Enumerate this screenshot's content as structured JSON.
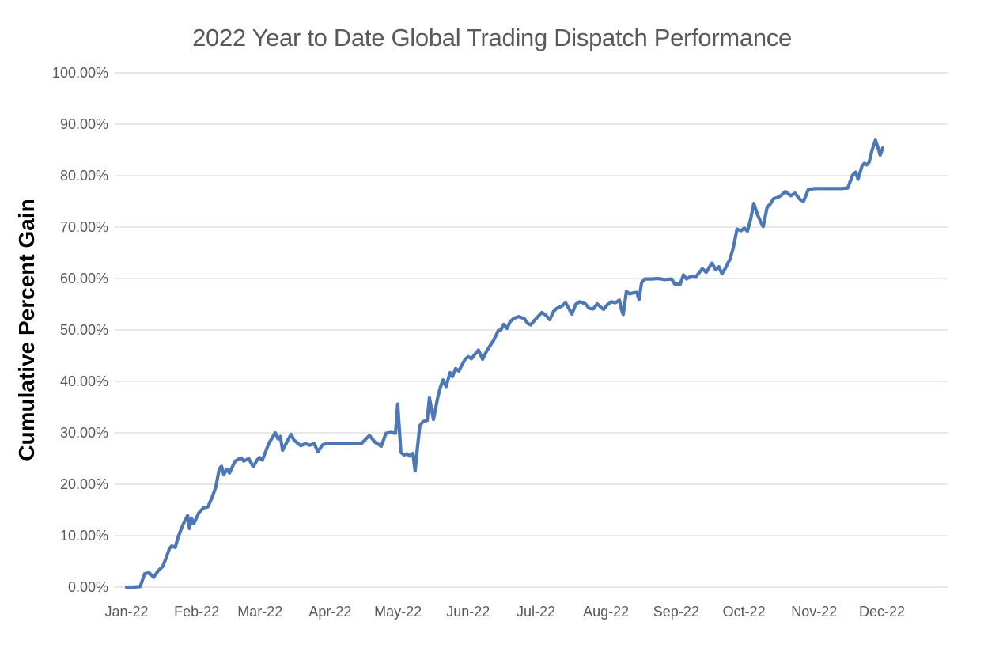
{
  "colors": {
    "line": "#4d78b5",
    "grid": "#d9d9d9",
    "tick_text": "#595959",
    "title_text": "#595959",
    "axis_title_text": "#000000",
    "background": "#ffffff"
  },
  "chart_data": {
    "type": "line",
    "title": "2022 Year to Date Global Trading Dispatch Performance",
    "xlabel": "",
    "ylabel": "Cumulative Percent Gain",
    "grid": true,
    "legend_position": "none",
    "ylim": [
      0,
      100
    ],
    "xlim_days": [
      0,
      363
    ],
    "y_tick_values": [
      0,
      10,
      20,
      30,
      40,
      50,
      60,
      70,
      80,
      90,
      100
    ],
    "y_tick_labels": [
      "0.00%",
      "10.00%",
      "20.00%",
      "30.00%",
      "40.00%",
      "50.00%",
      "60.00%",
      "70.00%",
      "80.00%",
      "90.00%",
      "100.00%"
    ],
    "x_tick_days": [
      0,
      31,
      59,
      90,
      120,
      151,
      181,
      212,
      243,
      273,
      304,
      334
    ],
    "x_tick_labels": [
      "Jan-22",
      "Feb-22",
      "Mar-22",
      "Apr-22",
      "May-22",
      "Jun-22",
      "Jul-22",
      "Aug-22",
      "Sep-22",
      "Oct-22",
      "Nov-22",
      "Dec-22"
    ],
    "series": [
      {
        "name": "Cumulative Percent Gain",
        "units": "percent",
        "points": [
          [
            0,
            0
          ],
          [
            3,
            0
          ],
          [
            6,
            0.1
          ],
          [
            8,
            2.6
          ],
          [
            10,
            2.8
          ],
          [
            12,
            1.9
          ],
          [
            14,
            3.2
          ],
          [
            16,
            4.0
          ],
          [
            17.5,
            5.7
          ],
          [
            19,
            7.5
          ],
          [
            20,
            8.0
          ],
          [
            21.5,
            7.7
          ],
          [
            23,
            10.0
          ],
          [
            25,
            12.2
          ],
          [
            27,
            13.9
          ],
          [
            27.8,
            11.4
          ],
          [
            28.7,
            13.4
          ],
          [
            29.7,
            12.3
          ],
          [
            32,
            14.5
          ],
          [
            34,
            15.4
          ],
          [
            36,
            15.6
          ],
          [
            38,
            17.7
          ],
          [
            39.5,
            19.5
          ],
          [
            41,
            23.0
          ],
          [
            42,
            23.5
          ],
          [
            43,
            21.9
          ],
          [
            44.4,
            22.9
          ],
          [
            45.5,
            22.2
          ],
          [
            48,
            24.5
          ],
          [
            49.7,
            24.9
          ],
          [
            50.7,
            25.1
          ],
          [
            51.8,
            24.5
          ],
          [
            54,
            25.0
          ],
          [
            56,
            23.4
          ],
          [
            57.7,
            24.7
          ],
          [
            58.8,
            25.2
          ],
          [
            60,
            24.7
          ],
          [
            63,
            28.0
          ],
          [
            65.7,
            30.0
          ],
          [
            67,
            28.8
          ],
          [
            68,
            29.3
          ],
          [
            69,
            26.6
          ],
          [
            71,
            28.3
          ],
          [
            72.7,
            29.7
          ],
          [
            74,
            28.6
          ],
          [
            77,
            27.5
          ],
          [
            79,
            27.9
          ],
          [
            81,
            27.6
          ],
          [
            83,
            27.9
          ],
          [
            84.6,
            26.3
          ],
          [
            86.7,
            27.7
          ],
          [
            88.5,
            27.9
          ],
          [
            92,
            27.9
          ],
          [
            96,
            28.0
          ],
          [
            100,
            27.9
          ],
          [
            104,
            28.0
          ],
          [
            107.4,
            29.5
          ],
          [
            109.8,
            28.2
          ],
          [
            112.6,
            27.4
          ],
          [
            114.7,
            29.9
          ],
          [
            116.8,
            30.1
          ],
          [
            118.9,
            29.9
          ],
          [
            119.9,
            35.6
          ],
          [
            121.3,
            26.2
          ],
          [
            122.7,
            25.7
          ],
          [
            124.1,
            25.9
          ],
          [
            125.2,
            25.5
          ],
          [
            126.6,
            26.0
          ],
          [
            127.6,
            22.6
          ],
          [
            128.7,
            27.5
          ],
          [
            129.7,
            31.4
          ],
          [
            131.1,
            32.2
          ],
          [
            132.9,
            32.4
          ],
          [
            133.9,
            36.8
          ],
          [
            135.7,
            32.6
          ],
          [
            137.4,
            36.5
          ],
          [
            138.5,
            38.5
          ],
          [
            139.9,
            40.3
          ],
          [
            141.3,
            39.0
          ],
          [
            143,
            41.7
          ],
          [
            144.1,
            40.9
          ],
          [
            145.5,
            42.5
          ],
          [
            146.9,
            42.0
          ],
          [
            148.3,
            43.2
          ],
          [
            149.7,
            44.3
          ],
          [
            151.1,
            44.8
          ],
          [
            152.5,
            44.4
          ],
          [
            153.9,
            45.2
          ],
          [
            155.6,
            46.1
          ],
          [
            157.4,
            44.3
          ],
          [
            159.1,
            45.8
          ],
          [
            160.2,
            46.6
          ],
          [
            162.3,
            48.0
          ],
          [
            164.4,
            49.9
          ],
          [
            165.5,
            50.0
          ],
          [
            166.8,
            51.1
          ],
          [
            168.2,
            50.3
          ],
          [
            169.6,
            51.6
          ],
          [
            171.3,
            52.3
          ],
          [
            173.4,
            52.6
          ],
          [
            175.9,
            52.2
          ],
          [
            177.3,
            51.3
          ],
          [
            178.7,
            51.0
          ],
          [
            180.8,
            52.1
          ],
          [
            183.6,
            53.4
          ],
          [
            185.3,
            52.9
          ],
          [
            187.1,
            52.0
          ],
          [
            188.8,
            53.6
          ],
          [
            190.2,
            54.2
          ],
          [
            192.3,
            54.6
          ],
          [
            194.1,
            55.3
          ],
          [
            195.8,
            54.0
          ],
          [
            196.9,
            53.1
          ],
          [
            198.6,
            55.0
          ],
          [
            200.4,
            55.5
          ],
          [
            202.8,
            55.1
          ],
          [
            204.6,
            54.2
          ],
          [
            206.3,
            54.1
          ],
          [
            208.1,
            55.1
          ],
          [
            209.8,
            54.4
          ],
          [
            210.9,
            54.0
          ],
          [
            212.6,
            54.9
          ],
          [
            214.4,
            55.5
          ],
          [
            216.1,
            55.3
          ],
          [
            217.9,
            55.8
          ],
          [
            218.8,
            54.0
          ],
          [
            219.6,
            53.0
          ],
          [
            221,
            57.5
          ],
          [
            222.4,
            57.0
          ],
          [
            224,
            57.2
          ],
          [
            225.6,
            57.3
          ],
          [
            226.6,
            55.9
          ],
          [
            227.7,
            59.2
          ],
          [
            229.1,
            59.9
          ],
          [
            232,
            59.9
          ],
          [
            235,
            60.0
          ],
          [
            238,
            59.8
          ],
          [
            241,
            59.9
          ],
          [
            242.4,
            58.9
          ],
          [
            244.8,
            58.9
          ],
          [
            246.2,
            60.7
          ],
          [
            247.6,
            59.9
          ],
          [
            249.7,
            60.5
          ],
          [
            251.8,
            60.4
          ],
          [
            254.6,
            61.9
          ],
          [
            256.3,
            61.2
          ],
          [
            258.8,
            63.0
          ],
          [
            260.5,
            61.7
          ],
          [
            261.9,
            62.3
          ],
          [
            263.3,
            60.9
          ],
          [
            265,
            62.2
          ],
          [
            266.8,
            63.8
          ],
          [
            268.3,
            66.0
          ],
          [
            269.9,
            69.6
          ],
          [
            271.7,
            69.3
          ],
          [
            273.1,
            69.8
          ],
          [
            274.5,
            69.2
          ],
          [
            275.9,
            71.5
          ],
          [
            277.3,
            74.6
          ],
          [
            279,
            72.4
          ],
          [
            280.4,
            71.0
          ],
          [
            281.5,
            70.1
          ],
          [
            283.2,
            73.8
          ],
          [
            284.6,
            74.5
          ],
          [
            286,
            75.5
          ],
          [
            288.1,
            75.8
          ],
          [
            289.5,
            76.2
          ],
          [
            291.3,
            76.9
          ],
          [
            293.7,
            76.1
          ],
          [
            295.5,
            76.6
          ],
          [
            297.9,
            75.3
          ],
          [
            299.3,
            75.0
          ],
          [
            301.4,
            77.3
          ],
          [
            304.2,
            77.5
          ],
          [
            308,
            77.5
          ],
          [
            312,
            77.5
          ],
          [
            316,
            77.5
          ],
          [
            318.9,
            77.6
          ],
          [
            321,
            80.1
          ],
          [
            322.4,
            80.7
          ],
          [
            323.4,
            79.3
          ],
          [
            325.2,
            81.9
          ],
          [
            326.2,
            82.4
          ],
          [
            327.3,
            82.1
          ],
          [
            328.3,
            82.6
          ],
          [
            329.7,
            85.1
          ],
          [
            331.1,
            86.9
          ],
          [
            332.2,
            85.5
          ],
          [
            333.2,
            84.0
          ],
          [
            334.3,
            85.4
          ]
        ]
      }
    ]
  }
}
